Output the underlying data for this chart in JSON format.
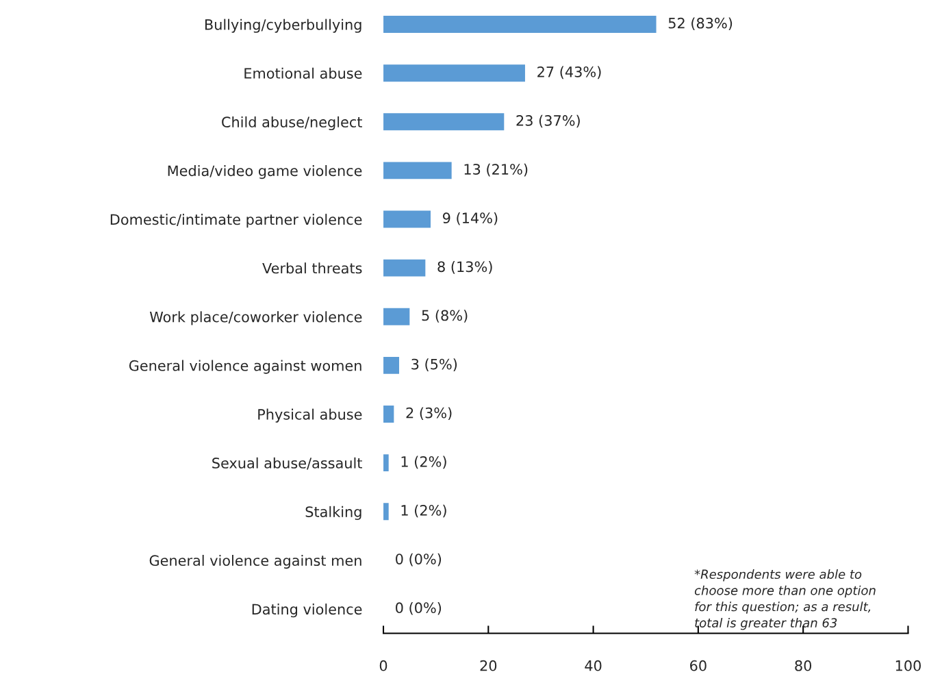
{
  "chart_data": {
    "type": "bar",
    "orientation": "horizontal",
    "categories": [
      "Bullying/cyberbullying",
      "Emotional abuse",
      "Child abuse/neglect",
      "Media/video game violence",
      "Domestic/intimate partner violence",
      "Verbal threats",
      "Work place/coworker violence",
      "General violence against women",
      "Physical abuse",
      "Sexual abuse/assault",
      "Stalking",
      "General violence against men",
      "Dating violence"
    ],
    "values": [
      52,
      27,
      23,
      13,
      9,
      8,
      5,
      3,
      2,
      1,
      1,
      0,
      0
    ],
    "value_labels": [
      "52 (83%)",
      "27 (43%)",
      "23 (37%)",
      "13 (21%)",
      "9 (14%)",
      "8 (13%)",
      "5 (8%)",
      "3 (5%)",
      "2 (3%)",
      "1 (2%)",
      "1 (2%)",
      "0 (0%)",
      "0 (0%)"
    ],
    "color": "#5b9bd5",
    "xlim": [
      0,
      100
    ],
    "xticks": [
      0,
      20,
      40,
      60,
      80,
      100
    ],
    "grid": false,
    "legend": false,
    "annotations": [
      "*Respondents were able to\nchoose more than one option\nfor this question; as a result,\ntotal is greater than 63"
    ]
  }
}
